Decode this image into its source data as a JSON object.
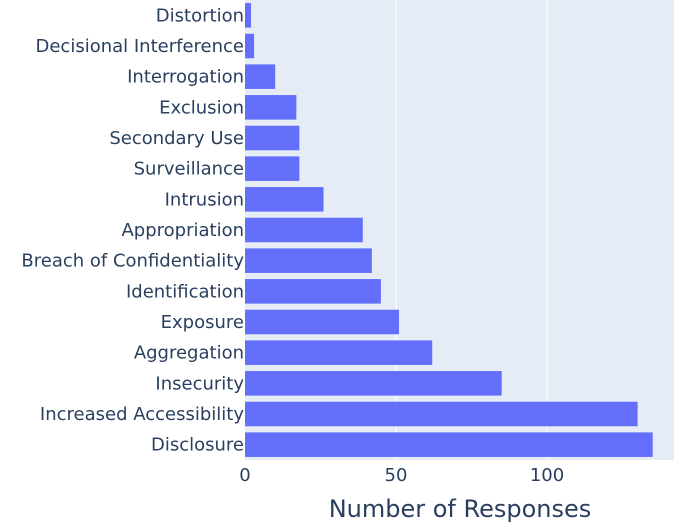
{
  "chart_data": {
    "type": "bar",
    "orientation": "horizontal",
    "categories": [
      "Distortion",
      "Decisional Interference",
      "Interrogation",
      "Exclusion",
      "Secondary Use",
      "Surveillance",
      "Intrusion",
      "Appropriation",
      "Breach of Confidentiality",
      "Identification",
      "Exposure",
      "Aggregation",
      "Insecurity",
      "Increased Accessibility",
      "Disclosure"
    ],
    "values": [
      2,
      3,
      10,
      17,
      18,
      18,
      26,
      39,
      42,
      45,
      51,
      62,
      85,
      130,
      135
    ],
    "xlabel": "Number of Responses",
    "ylabel": "",
    "xlim": [
      0,
      136
    ],
    "x_ticks": [
      0,
      50,
      100
    ],
    "grid": true,
    "colors": {
      "bar": "#636efa",
      "plot_bg": "#e5ecf6",
      "grid": "#ffffff",
      "text": "#2a3f5f"
    }
  }
}
